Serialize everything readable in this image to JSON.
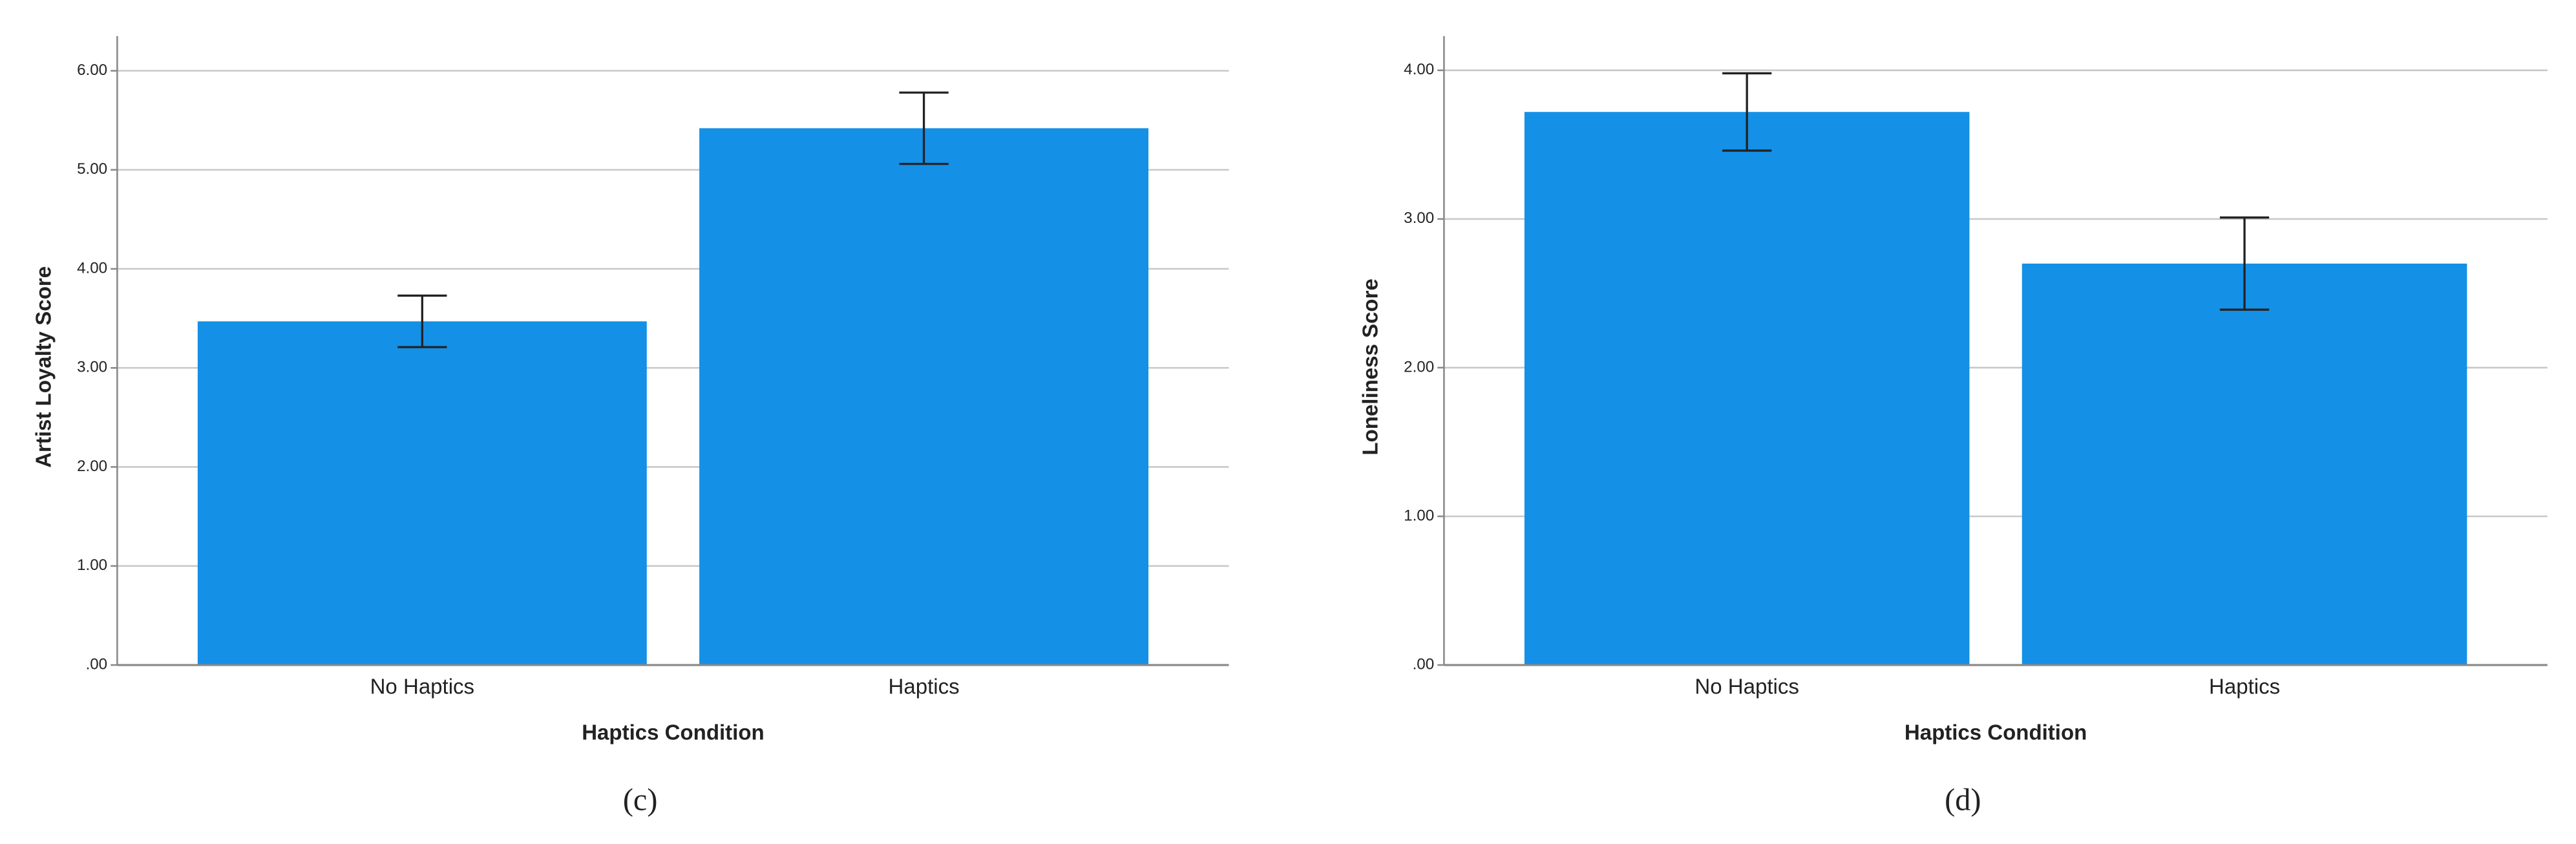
{
  "chart_data": [
    {
      "type": "bar",
      "categories": [
        "No Haptics",
        "Haptics"
      ],
      "values": [
        3.47,
        5.42
      ],
      "errors": [
        0.26,
        0.36
      ],
      "color": "#1490e6",
      "ylim": [
        0,
        6.35
      ],
      "yticks": [
        {
          "value": 0,
          "label": ".00"
        },
        {
          "value": 1,
          "label": "1.00"
        },
        {
          "value": 2,
          "label": "2.00"
        },
        {
          "value": 3,
          "label": "3.00"
        },
        {
          "value": 4,
          "label": "4.00"
        },
        {
          "value": 5,
          "label": "5.00"
        },
        {
          "value": 6,
          "label": "6.00"
        }
      ],
      "grid": true,
      "xlabel": "Haptics Condition",
      "ylabel": "Artist Loyalty Score",
      "caption": "(c)"
    },
    {
      "type": "bar",
      "categories": [
        "No Haptics",
        "Haptics"
      ],
      "values": [
        3.72,
        2.7
      ],
      "errors": [
        0.26,
        0.31
      ],
      "color": "#1490e6",
      "ylim": [
        0,
        4.23
      ],
      "yticks": [
        {
          "value": 0,
          "label": ".00"
        },
        {
          "value": 1,
          "label": "1.00"
        },
        {
          "value": 2,
          "label": "2.00"
        },
        {
          "value": 3,
          "label": "3.00"
        },
        {
          "value": 4,
          "label": "4.00"
        }
      ],
      "grid": true,
      "xlabel": "Haptics Condition",
      "ylabel": "Loneliness Score",
      "caption": "(d)"
    }
  ]
}
